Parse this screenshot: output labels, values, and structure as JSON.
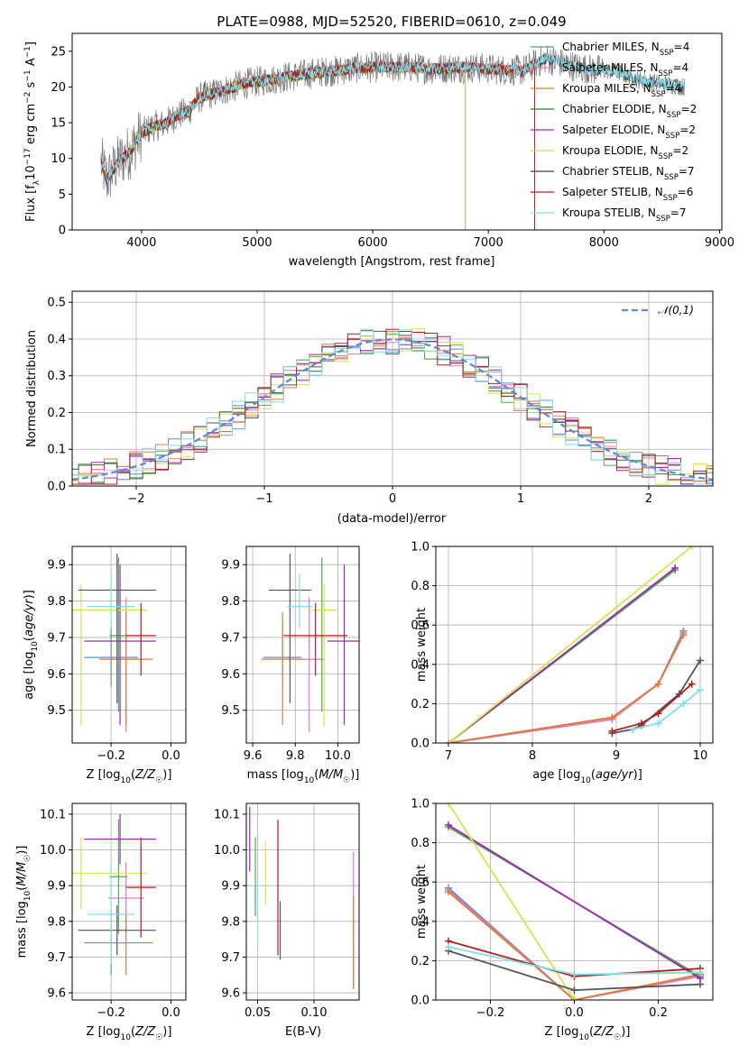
{
  "figure_title": "PLATE=0988, MJD=52520, FIBERID=0610, z=0.049",
  "chart_data": [
    {
      "id": "spectrum",
      "type": "line",
      "xlabel": "wavelength [Angstrom, rest frame]",
      "ylabel": "Flux [f_λ 10^-17 erg cm^-2 s^-1 A^-1]",
      "xlim": [
        3400,
        9020
      ],
      "ylim": [
        0,
        27.5
      ],
      "xticks": [
        4000,
        5000,
        6000,
        7000,
        8000,
        9000
      ],
      "yticks": [
        0,
        5,
        10,
        15,
        20,
        25
      ],
      "grid": false,
      "legend_position": "upper right",
      "observed_envelope": {
        "x": [
          3650,
          3700,
          3800,
          3900,
          4000,
          4100,
          4200,
          4300,
          4400,
          4500,
          4700,
          4900,
          5100,
          5300,
          5500,
          5700,
          5900,
          6100,
          6300,
          6500,
          6700,
          6900,
          7100,
          7300,
          7500,
          7700,
          7900,
          8100,
          8300,
          8500,
          8700
        ],
        "y": [
          9.5,
          7.0,
          9.5,
          11.0,
          13.5,
          14.5,
          14.8,
          16.0,
          16.5,
          18.5,
          19.5,
          20.5,
          21.0,
          21.5,
          22.0,
          22.3,
          22.7,
          22.8,
          22.8,
          22.5,
          22.7,
          22.7,
          22.4,
          22.3,
          24.0,
          23.0,
          22.4,
          22.2,
          21.0,
          20.5,
          20.0
        ]
      },
      "series": [
        {
          "name": "Chabrier MILES, N_SSP=4",
          "color": "#5b8ec0",
          "end_x": 7400
        },
        {
          "name": "Salpeter MILES, N_SSP=4",
          "color": "#e377c2",
          "end_x": 7400
        },
        {
          "name": "Kroupa MILES, N_SSP=4",
          "color": "#d4821c",
          "end_x": 7400
        },
        {
          "name": "Chabrier ELODIE, N_SSP=2",
          "color": "#2e7d32",
          "end_x": 6800
        },
        {
          "name": "Salpeter ELODIE, N_SSP=2",
          "color": "#9c27b0",
          "end_x": 6800
        },
        {
          "name": "Kroupa ELODIE, N_SSP=2",
          "color": "#cddc39",
          "end_x": 6800
        },
        {
          "name": "Chabrier STELIB, N_SSP=7",
          "color": "#424242",
          "end_x": 8700
        },
        {
          "name": "Salpeter STELIB, N_SSP=6",
          "color": "#b71c1c",
          "end_x": 7400
        },
        {
          "name": "Kroupa STELIB, N_SSP=7",
          "color": "#80deea",
          "end_x": 8700
        }
      ]
    },
    {
      "id": "residuals",
      "type": "line",
      "xlabel": "(data-model)/error",
      "ylabel": "Normed distribution",
      "xlim": [
        -2.5,
        2.5
      ],
      "ylim": [
        0,
        0.53
      ],
      "xticks": [
        -2,
        -1,
        0,
        1,
        2
      ],
      "yticks": [
        0.0,
        0.1,
        0.2,
        0.3,
        0.4,
        0.5
      ],
      "grid": true,
      "legend_position": "upper right",
      "reference": {
        "name": "𝒩(0,1)",
        "mean": 0,
        "sigma": 1,
        "color": "#6488d8"
      },
      "bin_width": 0.1
    },
    {
      "id": "age-vs-Z",
      "type": "scatter",
      "xlabel": "Z [log10(Z/Z☉)]",
      "ylabel": "age [log10(age/yr)]",
      "xlim": [
        -0.33,
        0.05
      ],
      "ylim": [
        9.41,
        9.95
      ],
      "xticks": [
        -0.2,
        0.0
      ],
      "yticks": [
        9.5,
        9.6,
        9.7,
        9.8,
        9.9
      ],
      "grid": true
    },
    {
      "id": "age-vs-mass",
      "type": "scatter",
      "xlabel": "mass [log10(M/M☉)]",
      "ylabel": "",
      "xlim": [
        9.57,
        10.1
      ],
      "ylim": [
        9.41,
        9.95
      ],
      "xticks": [
        9.6,
        9.8,
        10.0
      ],
      "yticks": [
        9.5,
        9.6,
        9.7,
        9.8,
        9.9
      ],
      "grid": true
    },
    {
      "id": "weight-vs-age",
      "type": "line",
      "xlabel": "age [log10(age/yr)]",
      "ylabel": "mass weight",
      "xlim": [
        6.85,
        10.15
      ],
      "ylim": [
        0,
        1.0
      ],
      "xticks": [
        7,
        8,
        9,
        10
      ],
      "yticks": [
        0.0,
        0.2,
        0.4,
        0.6,
        0.8,
        1.0
      ],
      "grid": true
    },
    {
      "id": "mass-vs-Z",
      "type": "scatter",
      "xlabel": "Z [log10(Z/Z☉)]",
      "ylabel": "mass [log10(M/M☉)]",
      "xlim": [
        -0.33,
        0.05
      ],
      "ylim": [
        9.58,
        10.13
      ],
      "xticks": [
        -0.2,
        0.0
      ],
      "yticks": [
        9.6,
        9.7,
        9.8,
        9.9,
        10.0,
        10.1
      ],
      "grid": true
    },
    {
      "id": "mass-vs-ebv",
      "type": "scatter",
      "xlabel": "E(B-V)",
      "ylabel": "",
      "xlim": [
        0.04,
        0.14
      ],
      "ylim": [
        9.58,
        10.13
      ],
      "xticks": [
        0.05,
        0.1
      ],
      "yticks": [
        9.6,
        9.7,
        9.8,
        9.9,
        10.0,
        10.1
      ],
      "grid": true
    },
    {
      "id": "weight-vs-Z",
      "type": "line",
      "xlabel": "Z [log10(Z/Z☉)]",
      "ylabel": "mass weight",
      "xlim": [
        -0.33,
        0.33
      ],
      "ylim": [
        0,
        1.0
      ],
      "xticks": [
        -0.2,
        0.0,
        0.2
      ],
      "yticks": [
        0.0,
        0.2,
        0.4,
        0.6,
        0.8,
        1.0
      ],
      "grid": true
    }
  ],
  "models": [
    {
      "name": "Chabrier MILES",
      "color": "#5b8ec0",
      "age": [
        9.645,
        0.08,
        0.1
      ],
      "Z": [
        -0.2,
        0.09
      ],
      "mass": [
        9.74,
        0.09
      ],
      "ebv": [
        0.135,
        0.02
      ],
      "mass_err": 0.09,
      "ages": [
        7.0,
        8.95,
        9.5,
        9.8
      ],
      "weights": [
        0.0,
        0.13,
        0.3,
        0.57
      ],
      "zs": [
        -0.3,
        0.0,
        0.3
      ],
      "zw": [
        0.57,
        0.0,
        0.13
      ]
    },
    {
      "name": "Salpeter MILES",
      "color": "#e377c2",
      "age": [
        9.64,
        0.2,
        0.17
      ],
      "Z": [
        -0.15,
        0.06
      ],
      "mass": [
        9.865,
        0.07
      ],
      "ebv": [
        0.135,
        0.02
      ],
      "mass_err": 0.1,
      "ages": [
        7.0,
        8.95,
        9.5,
        9.8
      ],
      "weights": [
        0.0,
        0.12,
        0.3,
        0.56
      ],
      "zs": [
        -0.3,
        0.0,
        0.3
      ],
      "zw": [
        0.56,
        0.0,
        0.12
      ]
    },
    {
      "name": "Kroupa MILES",
      "color": "#e07b39",
      "age": [
        9.64,
        0.18,
        0.13
      ],
      "Z": [
        -0.15,
        0.09
      ],
      "mass": [
        9.74,
        0.1
      ],
      "ebv": [
        0.135,
        0.02
      ],
      "mass_err": 0.09,
      "ages": [
        7.0,
        8.95,
        9.5,
        9.8
      ],
      "weights": [
        0.0,
        0.13,
        0.3,
        0.55
      ],
      "zs": [
        -0.3,
        0.0,
        0.3
      ],
      "zw": [
        0.55,
        0.0,
        0.13
      ]
    },
    {
      "name": "Chabrier ELODIE",
      "color": "#4caf50",
      "age": [
        9.705,
        0.21,
        0.215
      ],
      "Z": [
        -0.175,
        0.03
      ],
      "mass": [
        9.925,
        0.01
      ],
      "ebv": [
        0.048,
        0.015
      ],
      "mass_err": 0.16,
      "ages": [
        7.0,
        9.7
      ],
      "weights": [
        0.0,
        0.88
      ],
      "zs": [
        -0.3,
        0.3
      ],
      "zw": [
        0.88,
        0.12
      ]
    },
    {
      "name": "Salpeter ELODIE",
      "color": "#9c27b0",
      "age": [
        9.69,
        0.23,
        0.21
      ],
      "Z": [
        -0.17,
        0.12
      ],
      "mass": [
        10.03,
        0.08
      ],
      "ebv": [
        0.043,
        0.01
      ],
      "mass_err": 0.07,
      "ages": [
        7.0,
        9.7
      ],
      "weights": [
        0.0,
        0.89
      ],
      "zs": [
        -0.3,
        0.3
      ],
      "zw": [
        0.89,
        0.11
      ]
    },
    {
      "name": "Kroupa ELODIE",
      "color": "#d6e34b",
      "age": [
        9.775,
        0.32,
        0.07
      ],
      "Z": [
        -0.3,
        0.22
      ],
      "mass": [
        9.935,
        0.06
      ],
      "ebv": [
        0.057,
        0.01
      ],
      "mass_err": 0.1,
      "ages": [
        7.0,
        9.9
      ],
      "weights": [
        0.0,
        1.0
      ],
      "zs": [
        -0.3,
        0.0
      ],
      "zw": [
        1.0,
        0.0
      ]
    },
    {
      "name": "Chabrier STELIB",
      "color": "#555555",
      "age": [
        9.83,
        0.31,
        0.1
      ],
      "Z": [
        -0.18,
        0.13
      ],
      "mass": [
        9.775,
        0.1
      ],
      "ebv": [
        0.07,
        0.008
      ],
      "mass_err": 0.07,
      "ages": [
        8.95,
        9.2,
        9.3,
        9.75,
        10.0
      ],
      "weights": [
        0.05,
        0.07,
        0.09,
        0.25,
        0.42
      ],
      "zs": [
        -0.3,
        0.0,
        0.3
      ],
      "zw": [
        0.25,
        0.05,
        0.08
      ]
    },
    {
      "name": "Salpeter STELIB",
      "color": "#b71c1c",
      "age": [
        9.705,
        0.11,
        0.09
      ],
      "Z": [
        -0.1,
        0.05
      ],
      "mass": [
        9.895,
        0.15
      ],
      "ebv": [
        0.068,
        0.035
      ],
      "mass_err": 0.14,
      "ages": [
        8.95,
        9.3,
        9.5,
        9.9
      ],
      "weights": [
        0.06,
        0.1,
        0.15,
        0.3
      ],
      "zs": [
        -0.3,
        0.0,
        0.3
      ],
      "zw": [
        0.3,
        0.12,
        0.16
      ]
    },
    {
      "name": "Kroupa STELIB",
      "color": "#80deea",
      "age": [
        9.785,
        0.06,
        0.09
      ],
      "Z": [
        -0.2,
        0.08
      ],
      "mass": [
        9.82,
        0.06
      ],
      "ebv": [
        0.05,
        0.012
      ],
      "mass_err": 0.14,
      "ages": [
        9.2,
        9.5,
        9.8,
        10.0
      ],
      "weights": [
        0.07,
        0.1,
        0.2,
        0.27
      ],
      "zs": [
        -0.3,
        0.0,
        0.3
      ],
      "zw": [
        0.27,
        0.13,
        0.14
      ]
    }
  ]
}
